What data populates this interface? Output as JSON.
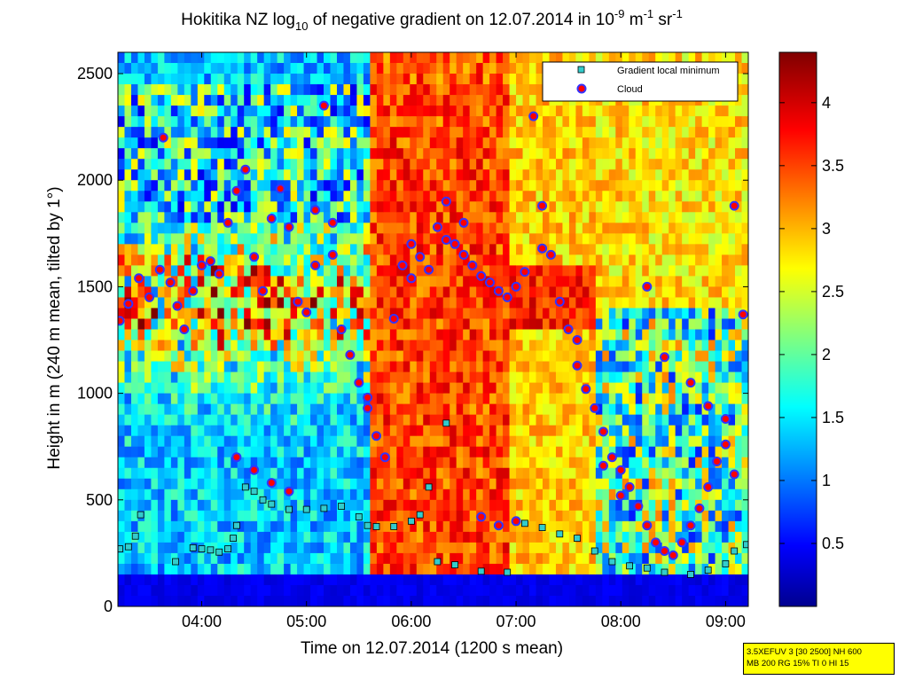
{
  "chart_data": {
    "type": "heatmap",
    "title": "Hokitika NZ log",
    "title_sub": "10",
    "title_mid": " of negative gradient on 12.07.2014 in 10",
    "title_sup1": "-9",
    "title_unit1": " m",
    "title_sup2": "-1",
    "title_unit2": " sr",
    "title_sup3": "-1",
    "xlabel": "Time on 12.07.2014 (1200 s mean)",
    "ylabel": "Height in m (240 m mean, tilted by 1°)",
    "xlim": [
      "03:12",
      "09:13"
    ],
    "ylim": [
      0,
      2600
    ],
    "x_ticks": [
      "04:00",
      "05:00",
      "06:00",
      "07:00",
      "08:00",
      "09:00"
    ],
    "y_ticks": [
      0,
      500,
      1000,
      1500,
      2000,
      2500
    ],
    "colorbar": {
      "range": [
        0,
        4.4
      ],
      "ticks": [
        0.5,
        1,
        1.5,
        2,
        2.5,
        3,
        3.5,
        4
      ],
      "colormap": "jet"
    },
    "legend": {
      "position": "top-right",
      "entries": [
        {
          "label": "Gradient local minimum",
          "marker": "square",
          "color": "#33cccc"
        },
        {
          "label": "Cloud",
          "marker": "circle",
          "color": "#ff0000"
        }
      ]
    },
    "series": [
      {
        "name": "Cloud",
        "points": [
          [
            "03:13",
            1340
          ],
          [
            "03:18",
            1420
          ],
          [
            "03:24",
            1540
          ],
          [
            "03:30",
            1450
          ],
          [
            "03:36",
            1580
          ],
          [
            "03:42",
            1520
          ],
          [
            "03:46",
            1410
          ],
          [
            "03:50",
            1300
          ],
          [
            "03:38",
            2200
          ],
          [
            "03:55",
            1480
          ],
          [
            "04:00",
            1600
          ],
          [
            "04:05",
            1620
          ],
          [
            "04:10",
            1560
          ],
          [
            "04:15",
            1800
          ],
          [
            "04:20",
            1950
          ],
          [
            "04:25",
            2050
          ],
          [
            "04:30",
            1640
          ],
          [
            "04:35",
            1480
          ],
          [
            "04:40",
            1820
          ],
          [
            "04:45",
            1960
          ],
          [
            "04:50",
            1780
          ],
          [
            "04:55",
            1430
          ],
          [
            "05:00",
            1380
          ],
          [
            "05:05",
            1600
          ],
          [
            "05:10",
            2350
          ],
          [
            "05:15",
            1800
          ],
          [
            "05:20",
            1300
          ],
          [
            "05:25",
            1180
          ],
          [
            "05:30",
            1050
          ],
          [
            "05:35",
            930
          ],
          [
            "05:40",
            800
          ],
          [
            "05:45",
            700
          ],
          [
            "05:50",
            1350
          ],
          [
            "05:55",
            1600
          ],
          [
            "06:00",
            1700
          ],
          [
            "06:05",
            1640
          ],
          [
            "06:10",
            1580
          ],
          [
            "06:15",
            1780
          ],
          [
            "06:20",
            1900
          ],
          [
            "06:25",
            1700
          ],
          [
            "06:30",
            1650
          ],
          [
            "06:35",
            1600
          ],
          [
            "06:40",
            1550
          ],
          [
            "06:45",
            1520
          ],
          [
            "06:50",
            1480
          ],
          [
            "06:55",
            1450
          ],
          [
            "07:00",
            1500
          ],
          [
            "07:05",
            1570
          ],
          [
            "07:10",
            2300
          ],
          [
            "07:15",
            1880
          ],
          [
            "07:20",
            1650
          ],
          [
            "07:25",
            1430
          ],
          [
            "07:30",
            1300
          ],
          [
            "07:35",
            1130
          ],
          [
            "07:40",
            1020
          ],
          [
            "07:45",
            930
          ],
          [
            "07:50",
            820
          ],
          [
            "07:55",
            700
          ],
          [
            "08:00",
            640
          ],
          [
            "08:05",
            560
          ],
          [
            "08:10",
            470
          ],
          [
            "08:15",
            380
          ],
          [
            "08:20",
            300
          ],
          [
            "08:25",
            260
          ],
          [
            "08:30",
            240
          ],
          [
            "08:35",
            300
          ],
          [
            "08:40",
            380
          ],
          [
            "08:45",
            460
          ],
          [
            "08:50",
            560
          ],
          [
            "08:55",
            680
          ],
          [
            "09:00",
            760
          ],
          [
            "09:05",
            1880
          ],
          [
            "09:10",
            1370
          ],
          [
            "04:20",
            700
          ],
          [
            "04:30",
            640
          ],
          [
            "04:40",
            580
          ],
          [
            "04:50",
            540
          ],
          [
            "06:40",
            420
          ],
          [
            "06:50",
            380
          ],
          [
            "07:00",
            400
          ],
          [
            "07:15",
            1680
          ],
          [
            "07:35",
            1250
          ],
          [
            "07:50",
            660
          ],
          [
            "08:00",
            520
          ],
          [
            "08:15",
            1500
          ],
          [
            "08:25",
            1170
          ],
          [
            "08:40",
            1050
          ],
          [
            "08:50",
            940
          ],
          [
            "09:00",
            880
          ],
          [
            "09:05",
            620
          ],
          [
            "05:05",
            1860
          ],
          [
            "05:15",
            1650
          ],
          [
            "05:35",
            980
          ],
          [
            "06:00",
            1540
          ],
          [
            "06:20",
            1720
          ],
          [
            "06:30",
            1800
          ]
        ]
      },
      {
        "name": "Gradient local minimum",
        "points": [
          [
            "03:13",
            270
          ],
          [
            "03:18",
            280
          ],
          [
            "03:22",
            330
          ],
          [
            "03:25",
            430
          ],
          [
            "03:45",
            210
          ],
          [
            "03:55",
            275
          ],
          [
            "04:00",
            270
          ],
          [
            "04:05",
            265
          ],
          [
            "04:10",
            255
          ],
          [
            "04:15",
            270
          ],
          [
            "04:18",
            320
          ],
          [
            "04:20",
            380
          ],
          [
            "04:25",
            560
          ],
          [
            "04:30",
            540
          ],
          [
            "04:35",
            500
          ],
          [
            "04:40",
            480
          ],
          [
            "04:50",
            455
          ],
          [
            "05:00",
            455
          ],
          [
            "05:10",
            460
          ],
          [
            "05:20",
            470
          ],
          [
            "05:30",
            420
          ],
          [
            "05:35",
            380
          ],
          [
            "05:40",
            375
          ],
          [
            "05:50",
            375
          ],
          [
            "06:00",
            400
          ],
          [
            "06:05",
            430
          ],
          [
            "06:10",
            560
          ],
          [
            "06:20",
            860
          ],
          [
            "06:15",
            210
          ],
          [
            "06:25",
            195
          ],
          [
            "06:40",
            165
          ],
          [
            "06:55",
            160
          ],
          [
            "07:05",
            390
          ],
          [
            "07:15",
            370
          ],
          [
            "07:25",
            340
          ],
          [
            "07:35",
            320
          ],
          [
            "07:45",
            260
          ],
          [
            "07:55",
            210
          ],
          [
            "08:05",
            190
          ],
          [
            "08:15",
            180
          ],
          [
            "08:25",
            160
          ],
          [
            "08:40",
            150
          ],
          [
            "08:50",
            170
          ],
          [
            "09:00",
            200
          ],
          [
            "09:05",
            260
          ],
          [
            "09:12",
            290
          ]
        ]
      }
    ]
  },
  "info_box": {
    "line1": "3.5XEFUV 3 [30 2500] NH 600",
    "line2": "MB 200 RG 15% TI 0 HI 15"
  }
}
